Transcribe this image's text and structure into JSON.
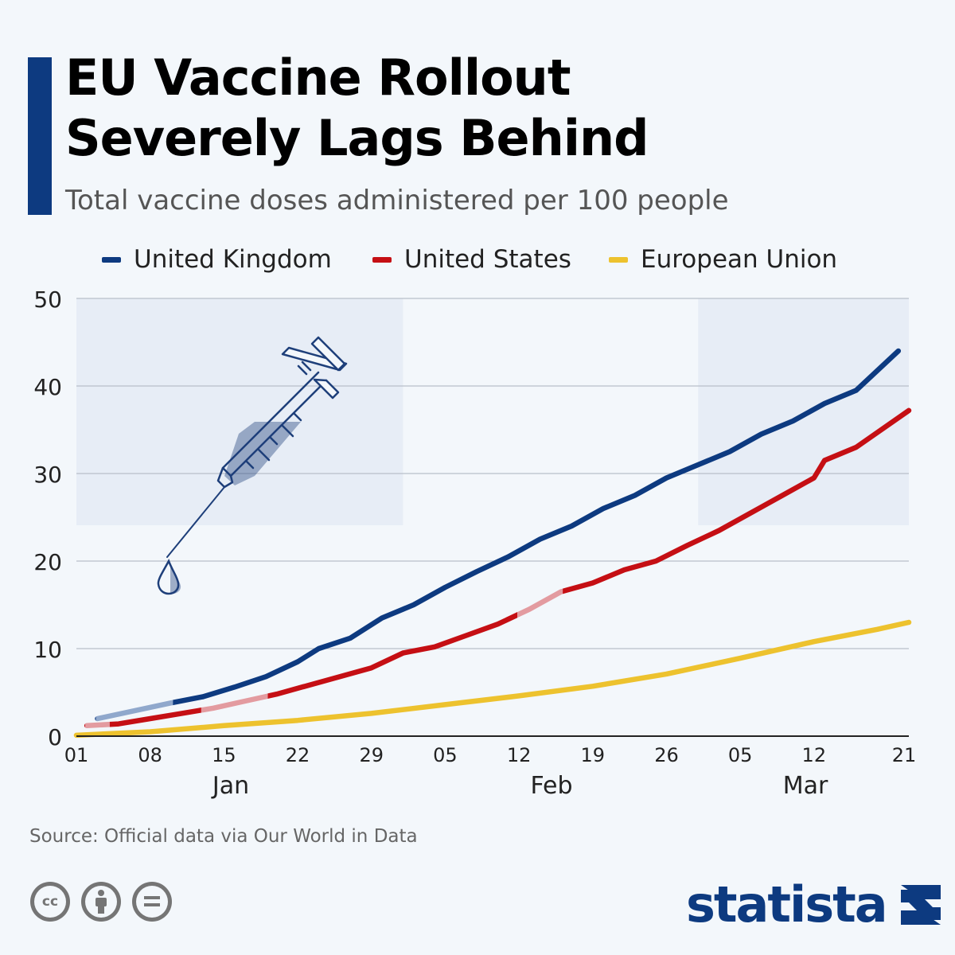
{
  "header": {
    "title_line1": "EU Vaccine Rollout",
    "title_line2": "Severely Lags Behind",
    "subtitle": "Total vaccine doses administered per 100 people"
  },
  "legend": [
    {
      "label": "United Kingdom",
      "color": "#0d3a80"
    },
    {
      "label": "United States",
      "color": "#c50f14"
    },
    {
      "label": "European Union",
      "color": "#edc22e"
    }
  ],
  "footer": {
    "source": "Source: Official data via Our World in Data",
    "brand": "statista",
    "license_icons": [
      "cc-icon",
      "attribution-icon",
      "no-derivatives-icon"
    ]
  },
  "decoration": {
    "icon": "syringe-icon"
  },
  "chart_data": {
    "type": "line",
    "ylim": [
      0,
      50
    ],
    "yticks": [
      0,
      10,
      20,
      30,
      40,
      50
    ],
    "xlim": [
      "2021-01-01",
      "2021-03-21"
    ],
    "xticks": [
      {
        "label": "01",
        "date": "2021-01-01"
      },
      {
        "label": "08",
        "date": "2021-01-08"
      },
      {
        "label": "15",
        "date": "2021-01-15"
      },
      {
        "label": "22",
        "date": "2021-01-22"
      },
      {
        "label": "29",
        "date": "2021-01-29"
      },
      {
        "label": "05",
        "date": "2021-02-05"
      },
      {
        "label": "12",
        "date": "2021-02-12"
      },
      {
        "label": "19",
        "date": "2021-02-19"
      },
      {
        "label": "26",
        "date": "2021-02-26"
      },
      {
        "label": "05",
        "date": "2021-03-05"
      },
      {
        "label": "12",
        "date": "2021-03-12"
      },
      {
        "label": "21",
        "date": "2021-03-21"
      }
    ],
    "months": [
      {
        "label": "Jan",
        "start": "2021-01-01",
        "end": "2021-02-01"
      },
      {
        "label": "Feb",
        "start": "2021-02-01",
        "end": "2021-03-01"
      },
      {
        "label": "Mar",
        "start": "2021-03-01",
        "end": "2021-03-21"
      }
    ],
    "series": [
      {
        "name": "United Kingdom",
        "color": "#0d3a80",
        "gap_color": "#90a8cc",
        "points": [
          [
            "2021-01-03",
            2.0
          ],
          [
            "2021-01-10",
            3.8
          ],
          [
            "2021-01-13",
            4.5
          ],
          [
            "2021-01-16",
            5.6
          ],
          [
            "2021-01-19",
            6.8
          ],
          [
            "2021-01-22",
            8.5
          ],
          [
            "2021-01-24",
            10.0
          ],
          [
            "2021-01-27",
            11.2
          ],
          [
            "2021-01-30",
            13.5
          ],
          [
            "2021-02-02",
            15.0
          ],
          [
            "2021-02-05",
            17.0
          ],
          [
            "2021-02-08",
            18.8
          ],
          [
            "2021-02-11",
            20.5
          ],
          [
            "2021-02-14",
            22.5
          ],
          [
            "2021-02-17",
            24.0
          ],
          [
            "2021-02-20",
            26.0
          ],
          [
            "2021-02-23",
            27.5
          ],
          [
            "2021-02-26",
            29.5
          ],
          [
            "2021-03-01",
            31.0
          ],
          [
            "2021-03-04",
            32.5
          ],
          [
            "2021-03-07",
            34.5
          ],
          [
            "2021-03-10",
            36.0
          ],
          [
            "2021-03-13",
            38.0
          ],
          [
            "2021-03-16",
            39.5
          ],
          [
            "2021-03-20",
            44.0
          ]
        ],
        "gaps": [
          [
            "2021-01-03",
            "2021-01-10"
          ]
        ]
      },
      {
        "name": "United States",
        "color": "#c50f14",
        "gap_color": "#e39ba0",
        "points": [
          [
            "2021-01-02",
            1.2
          ],
          [
            "2021-01-05",
            1.4
          ],
          [
            "2021-01-08",
            2.0
          ],
          [
            "2021-01-11",
            2.6
          ],
          [
            "2021-01-14",
            3.2
          ],
          [
            "2021-01-17",
            4.0
          ],
          [
            "2021-01-20",
            4.8
          ],
          [
            "2021-01-23",
            5.8
          ],
          [
            "2021-01-26",
            6.8
          ],
          [
            "2021-01-29",
            7.8
          ],
          [
            "2021-02-01",
            9.5
          ],
          [
            "2021-02-04",
            10.2
          ],
          [
            "2021-02-07",
            11.5
          ],
          [
            "2021-02-10",
            12.8
          ],
          [
            "2021-02-13",
            14.5
          ],
          [
            "2021-02-16",
            16.5
          ],
          [
            "2021-02-19",
            17.5
          ],
          [
            "2021-02-22",
            19.0
          ],
          [
            "2021-02-25",
            20.0
          ],
          [
            "2021-02-28",
            21.8
          ],
          [
            "2021-03-03",
            23.5
          ],
          [
            "2021-03-06",
            25.5
          ],
          [
            "2021-03-09",
            27.5
          ],
          [
            "2021-03-12",
            29.5
          ],
          [
            "2021-03-13",
            31.5
          ],
          [
            "2021-03-16",
            33.0
          ],
          [
            "2021-03-21",
            37.2
          ]
        ],
        "gaps": [
          [
            "2021-01-02",
            "2021-01-04"
          ],
          [
            "2021-01-13",
            "2021-01-19"
          ],
          [
            "2021-02-12",
            "2021-02-16"
          ]
        ]
      },
      {
        "name": "European Union",
        "color": "#edc22e",
        "gap_color": "#edc22e",
        "points": [
          [
            "2021-01-01",
            0.1
          ],
          [
            "2021-01-08",
            0.5
          ],
          [
            "2021-01-15",
            1.2
          ],
          [
            "2021-01-22",
            1.8
          ],
          [
            "2021-01-29",
            2.6
          ],
          [
            "2021-02-05",
            3.6
          ],
          [
            "2021-02-12",
            4.6
          ],
          [
            "2021-02-19",
            5.7
          ],
          [
            "2021-02-26",
            7.1
          ],
          [
            "2021-03-05",
            8.9
          ],
          [
            "2021-03-12",
            10.8
          ],
          [
            "2021-03-18",
            12.2
          ],
          [
            "2021-03-21",
            13.0
          ]
        ],
        "gaps": []
      }
    ]
  }
}
